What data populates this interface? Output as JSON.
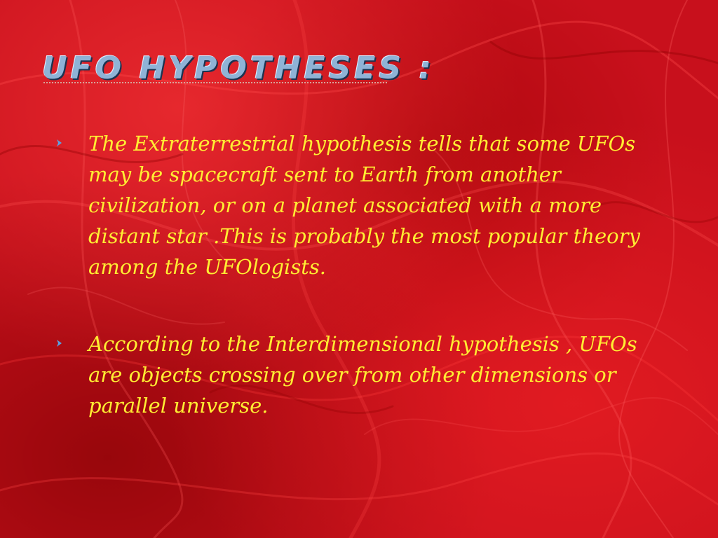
{
  "slide": {
    "title": "UFO  HYPOTHESES :",
    "bullets": [
      {
        "marker_icon": "chevron-right-icon",
        "text": "The Extraterrestrial  hypothesis  tells that some UFOs may be spacecraft sent to Earth from another civilization, or on a planet associated with a more distant star .This is probably the most popular theory among the UFOlogists."
      },
      {
        "marker_icon": "chevron-right-icon",
        "text": "According to the  Interdimensional hypothesis ,  UFOs are objects crossing over from other dimensions or parallel universe."
      }
    ]
  },
  "colors": {
    "background": "#c8101c",
    "title": "#8fb3d6",
    "body_text": "#ffee33",
    "bullet_marker": "#5aa0e0"
  }
}
